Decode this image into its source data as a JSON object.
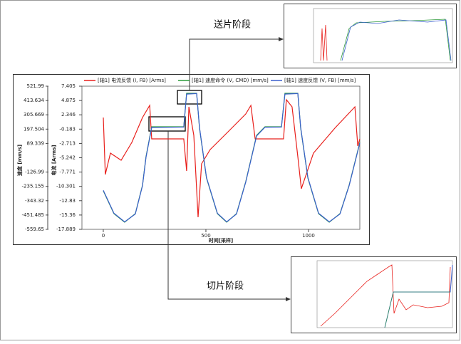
{
  "chart_data": {
    "type": "line",
    "annotations": [
      "送片阶段",
      "切片阶段"
    ],
    "xlabel": "时间[采样]",
    "ylabel": "速度 [mm/s]",
    "y2label": "电流 [Arms]",
    "xlim": [
      -104,
      1250
    ],
    "xticks": [
      0,
      500,
      1000
    ],
    "ylim": [
      -559.65,
      521.99
    ],
    "yticks": [
      521.99,
      413.634,
      305.669,
      197.504,
      89.339,
      -126.99,
      -235.155,
      -343.32,
      -451.485,
      -559.65
    ],
    "y2lim": [
      -17.889,
      7.405
    ],
    "y2ticks": [
      7.405,
      4.875,
      2.346,
      -0.183,
      -2.713,
      -5.242,
      -7.771,
      -10.301,
      -12.83,
      -15.36,
      -17.889
    ],
    "grid": false,
    "series": [
      {
        "name": "[轴1] 电流反馈 (I, FB) [Arms]",
        "color": "#e8201c",
        "axis": "y2",
        "x": [
          0,
          10,
          35,
          87,
          139,
          191,
          226,
          236,
          392,
          406,
          417,
          441,
          462,
          479,
          521,
          608,
          694,
          719,
          740,
          878,
          892,
          920,
          948,
          965,
          1024,
          1128,
          1226,
          1240,
          1250
        ],
        "values": [
          1.87,
          -8.2,
          -4.43,
          -5.68,
          -2.54,
          1.87,
          4.01,
          -1.91,
          -1.91,
          -7.57,
          3.76,
          -1.28,
          -15.75,
          -6.31,
          -3.8,
          -0.65,
          2.5,
          4.01,
          -1.91,
          -1.91,
          5.01,
          3.76,
          -5.05,
          -10.72,
          -4.43,
          -0.02,
          3.76,
          -3.17,
          -1.91
        ]
      },
      {
        "name": "[轴1] 速度命令 (V, CMD) [mm/s]",
        "color": "#2e9a3a",
        "axis": "y",
        "x": [
          0,
          52,
          104,
          156,
          191,
          208,
          236,
          392,
          406,
          455,
          469,
          503,
          556,
          601,
          649,
          694,
          747,
          788,
          868,
          885,
          948,
          962,
          997,
          1049,
          1101,
          1153,
          1198,
          1250
        ],
        "values": [
          -269,
          -441,
          -506,
          -441,
          -226,
          -11,
          215,
          215,
          468,
          468,
          204,
          -172,
          -441,
          -506,
          -441,
          -199,
          150,
          215,
          215,
          468,
          468,
          204,
          -172,
          -441,
          -506,
          -441,
          -226,
          97
        ]
      },
      {
        "name": "[轴1] 速度反馈 (V, FB) [mm/s]",
        "color": "#3a5fcd",
        "axis": "y",
        "x": [
          0,
          52,
          104,
          156,
          191,
          208,
          236,
          392,
          406,
          455,
          469,
          503,
          556,
          601,
          649,
          694,
          747,
          788,
          868,
          885,
          948,
          962,
          997,
          1049,
          1101,
          1153,
          1198,
          1250
        ],
        "values": [
          -265,
          -438,
          -503,
          -444,
          -230,
          -16,
          210,
          213,
          462,
          466,
          210,
          -168,
          -438,
          -503,
          -444,
          -203,
          146,
          212,
          213,
          462,
          466,
          210,
          -168,
          -438,
          -503,
          -444,
          -230,
          92
        ]
      }
    ]
  }
}
